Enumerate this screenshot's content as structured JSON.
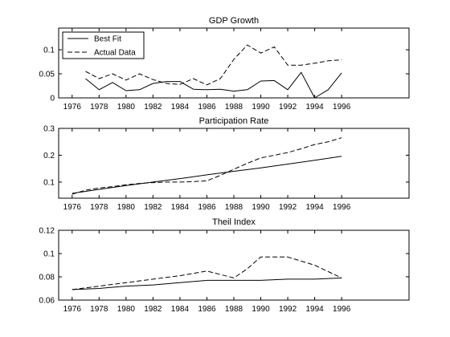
{
  "chart_data": [
    {
      "type": "line",
      "title": "GDP Growth",
      "xlabel": "",
      "ylabel": "",
      "xlim": [
        1975,
        2001
      ],
      "ylim": [
        0,
        0.145
      ],
      "xticks": [
        1976,
        1978,
        1980,
        1982,
        1984,
        1986,
        1988,
        1990,
        1992,
        1994,
        1996
      ],
      "xtick_labels": [
        "1976",
        "1978",
        "1980",
        "1982",
        "1984",
        "1986",
        "1988",
        "1990",
        "1992",
        "1994",
        "1996"
      ],
      "yticks": [
        0,
        0.05,
        0.1
      ],
      "ytick_labels": [
        "0",
        "0.05",
        "0.1"
      ],
      "grid": false,
      "legend": {
        "position": "top-left",
        "entries": [
          "Best Fit",
          "Actual Data"
        ]
      },
      "series": [
        {
          "name": "Best Fit",
          "style": "solid",
          "x": [
            1977,
            1978,
            1979,
            1980,
            1981,
            1982,
            1983,
            1984,
            1985,
            1986,
            1987,
            1988,
            1989,
            1990,
            1991,
            1992,
            1993,
            1994,
            1995,
            1996
          ],
          "y": [
            0.04,
            0.017,
            0.032,
            0.015,
            0.017,
            0.03,
            0.034,
            0.034,
            0.018,
            0.017,
            0.018,
            0.014,
            0.017,
            0.035,
            0.036,
            0.017,
            0.053,
            0.0,
            0.017,
            0.052
          ]
        },
        {
          "name": "Actual Data",
          "style": "dashed",
          "x": [
            1977,
            1978,
            1979,
            1980,
            1981,
            1982,
            1983,
            1984,
            1985,
            1986,
            1987,
            1988,
            1989,
            1990,
            1991,
            1992,
            1993,
            1994,
            1995,
            1996
          ],
          "y": [
            0.055,
            0.04,
            0.05,
            0.037,
            0.05,
            0.038,
            0.03,
            0.028,
            0.04,
            0.027,
            0.04,
            0.08,
            0.11,
            0.093,
            0.106,
            0.068,
            0.068,
            0.072,
            0.077,
            0.079
          ]
        }
      ]
    },
    {
      "type": "line",
      "title": "Participation Rate",
      "xlabel": "",
      "ylabel": "",
      "xlim": [
        1975,
        2001
      ],
      "ylim": [
        0.04,
        0.3
      ],
      "xticks": [
        1976,
        1978,
        1980,
        1982,
        1984,
        1986,
        1988,
        1990,
        1992,
        1994,
        1996
      ],
      "xtick_labels": [
        "1976",
        "1978",
        "1980",
        "1982",
        "1984",
        "1986",
        "1988",
        "1990",
        "1992",
        "1994",
        "1996"
      ],
      "yticks": [
        0.1,
        0.2,
        0.3
      ],
      "ytick_labels": [
        "0.1",
        "0.2",
        "0.3"
      ],
      "grid": false,
      "series": [
        {
          "name": "Best Fit",
          "style": "solid",
          "x": [
            1976,
            1978,
            1980,
            1982,
            1984,
            1986,
            1988,
            1990,
            1992,
            1994,
            1996
          ],
          "y": [
            0.058,
            0.073,
            0.087,
            0.1,
            0.113,
            0.127,
            0.14,
            0.153,
            0.167,
            0.181,
            0.196
          ]
        },
        {
          "name": "Actual Data",
          "style": "dashed",
          "x": [
            1976,
            1977,
            1978,
            1979,
            1980,
            1981,
            1982,
            1983,
            1984,
            1985,
            1986,
            1987,
            1988,
            1989,
            1990,
            1991,
            1992,
            1993,
            1994,
            1995,
            1996
          ],
          "y": [
            0.055,
            0.07,
            0.078,
            0.083,
            0.09,
            0.095,
            0.098,
            0.1,
            0.1,
            0.102,
            0.105,
            0.125,
            0.148,
            0.17,
            0.19,
            0.2,
            0.21,
            0.224,
            0.24,
            0.25,
            0.265
          ]
        }
      ]
    },
    {
      "type": "line",
      "title": "Theil Index",
      "xlabel": "",
      "ylabel": "",
      "xlim": [
        1975,
        2001
      ],
      "ylim": [
        0.06,
        0.12
      ],
      "xticks": [
        1976,
        1978,
        1980,
        1982,
        1984,
        1986,
        1988,
        1990,
        1992,
        1994,
        1996
      ],
      "xtick_labels": [
        "1976",
        "1978",
        "1980",
        "1982",
        "1984",
        "1986",
        "1988",
        "1990",
        "1992",
        "1994",
        "1996"
      ],
      "yticks": [
        0.06,
        0.08,
        0.1,
        0.12
      ],
      "ytick_labels": [
        "0.06",
        "0.08",
        "0.1",
        "0.12"
      ],
      "grid": false,
      "series": [
        {
          "name": "Best Fit",
          "style": "solid",
          "x": [
            1976,
            1978,
            1980,
            1982,
            1984,
            1986,
            1988,
            1990,
            1992,
            1994,
            1996
          ],
          "y": [
            0.069,
            0.07,
            0.072,
            0.073,
            0.075,
            0.077,
            0.077,
            0.077,
            0.078,
            0.078,
            0.079
          ]
        },
        {
          "name": "Actual Data",
          "style": "dashed",
          "x": [
            1976,
            1978,
            1980,
            1982,
            1984,
            1986,
            1988,
            1989,
            1990,
            1992,
            1994,
            1996
          ],
          "y": [
            0.069,
            0.072,
            0.075,
            0.078,
            0.081,
            0.085,
            0.079,
            0.087,
            0.097,
            0.097,
            0.09,
            0.079
          ]
        }
      ]
    }
  ]
}
